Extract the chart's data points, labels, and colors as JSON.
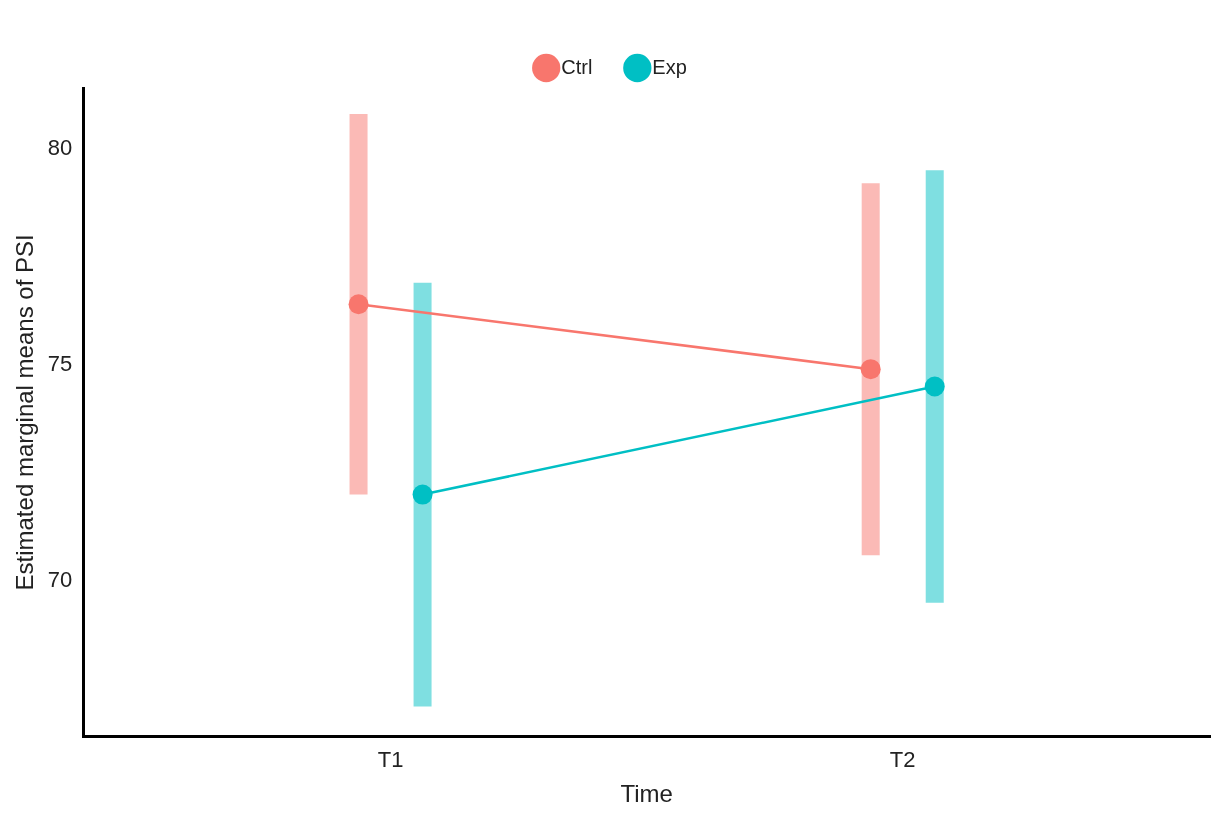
{
  "chart_data": {
    "type": "line",
    "xlabel": "Time",
    "ylabel": "Estimated marginal means of PSI",
    "categories": [
      "T1",
      "T2"
    ],
    "series": [
      {
        "name": "Ctrl",
        "color": "#f8766d",
        "values": [
          76.4,
          74.9
        ],
        "errors": [
          [
            72.0,
            80.8
          ],
          [
            70.6,
            79.2
          ]
        ]
      },
      {
        "name": "Exp",
        "color": "#00bfc4",
        "values": [
          72.0,
          74.5
        ],
        "errors": [
          [
            67.1,
            76.9
          ],
          [
            69.5,
            79.5
          ]
        ]
      }
    ],
    "ylim": [
      66.4,
      81.4
    ],
    "yticks": [
      70,
      75,
      80
    ],
    "grid": false,
    "legend": "top",
    "marker": "circle",
    "line_style": "solid"
  }
}
